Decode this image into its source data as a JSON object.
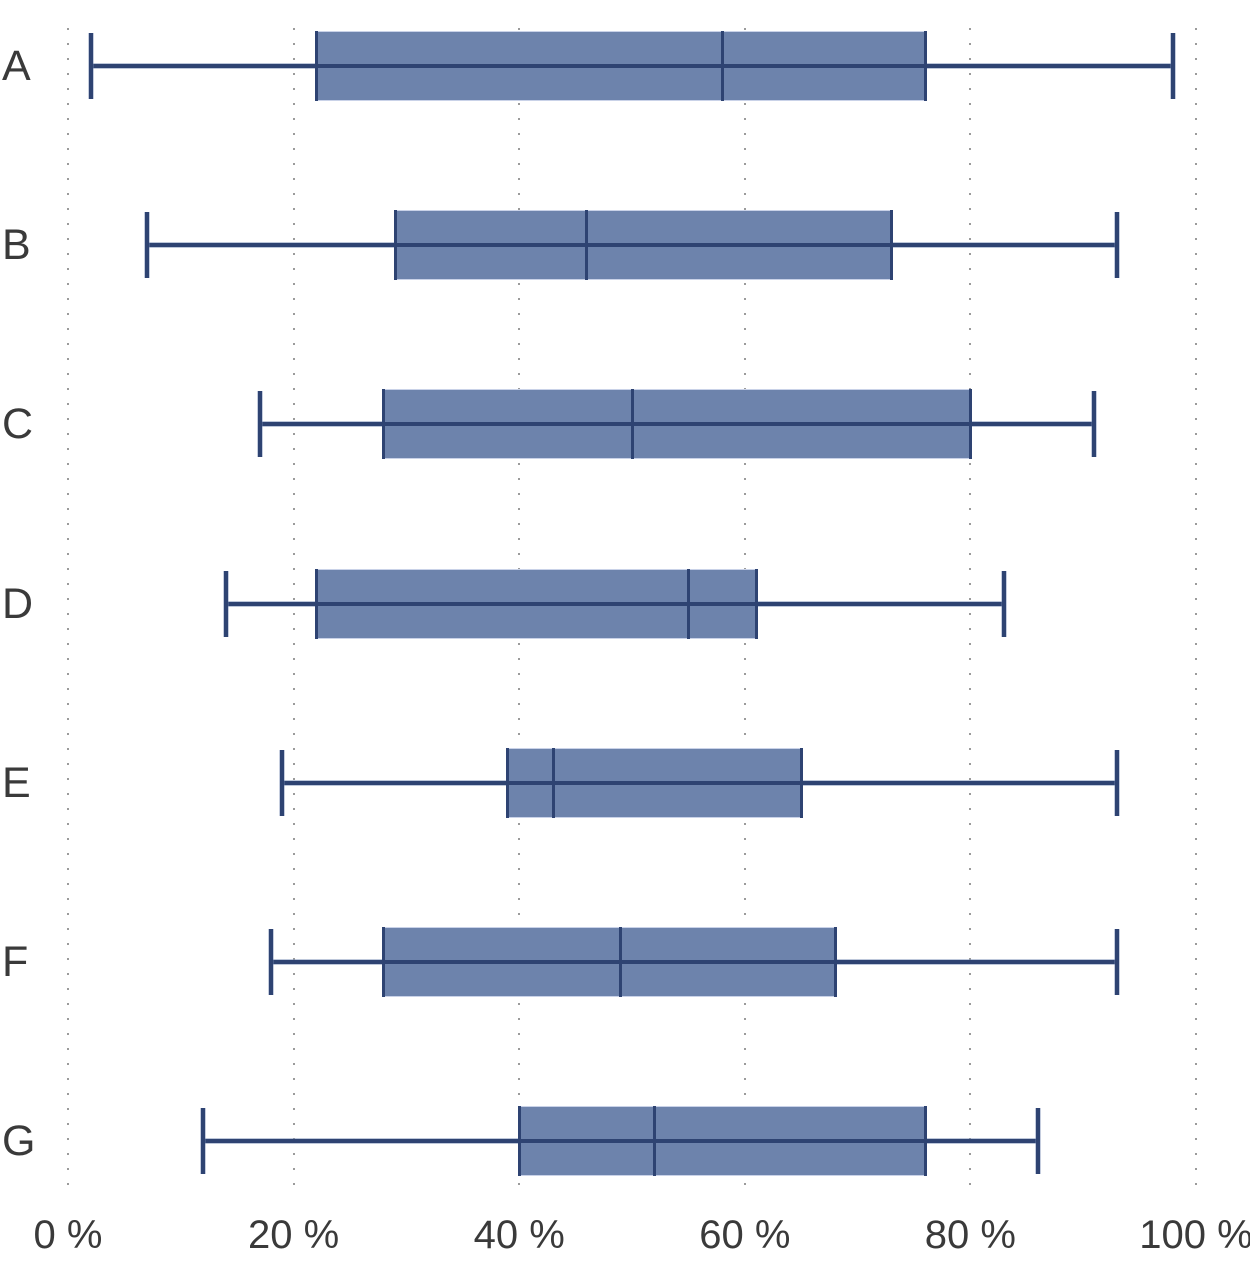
{
  "chart_data": {
    "type": "boxplot",
    "orientation": "horizontal",
    "title": "",
    "categories": [
      "A",
      "B",
      "C",
      "D",
      "E",
      "F",
      "G"
    ],
    "series": [
      {
        "name": "A",
        "min": 2,
        "q1": 22,
        "median": 58,
        "q3": 76,
        "max": 98
      },
      {
        "name": "B",
        "min": 7,
        "q1": 29,
        "median": 46,
        "q3": 73,
        "max": 93
      },
      {
        "name": "C",
        "min": 17,
        "q1": 28,
        "median": 50,
        "q3": 80,
        "max": 91
      },
      {
        "name": "D",
        "min": 14,
        "q1": 22,
        "median": 55,
        "q3": 61,
        "max": 83
      },
      {
        "name": "E",
        "min": 19,
        "q1": 39,
        "median": 43,
        "q3": 65,
        "max": 93
      },
      {
        "name": "F",
        "min": 18,
        "q1": 28,
        "median": 49,
        "q3": 68,
        "max": 93
      },
      {
        "name": "G",
        "min": 12,
        "q1": 40,
        "median": 52,
        "q3": 76,
        "max": 86
      }
    ],
    "x_axis": {
      "unit": "%",
      "range": [
        0,
        100
      ],
      "ticks": [
        {
          "value": 0,
          "label": "0 %"
        },
        {
          "value": 20,
          "label": "20 %"
        },
        {
          "value": 40,
          "label": "40 %"
        },
        {
          "value": 60,
          "label": "60 %"
        },
        {
          "value": 80,
          "label": "80 %"
        },
        {
          "value": 100,
          "label": "100 %"
        }
      ]
    },
    "grid": "dotted-vertical",
    "legend": "none",
    "colors": {
      "box_fill": "#6d83ac",
      "box_stroke": "#c9d2e8",
      "line": "#2e4372",
      "grid_dot": "#9b9b9b",
      "text": "#3a3a3a"
    }
  }
}
